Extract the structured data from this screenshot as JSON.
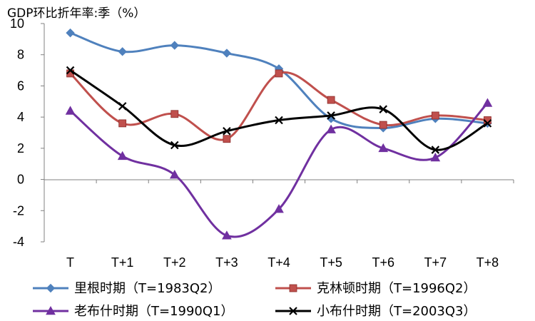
{
  "chart_data": {
    "type": "line",
    "title": "",
    "ylabel": "GDP环比折年率:季（%）",
    "xlabel": "",
    "categories": [
      "T",
      "T+1",
      "T+2",
      "T+3",
      "T+4",
      "T+5",
      "T+6",
      "T+7",
      "T+8"
    ],
    "ylim": [
      -4,
      10
    ],
    "yticks": [
      -4,
      -2,
      0,
      2,
      4,
      6,
      8,
      10
    ],
    "grid": false,
    "smooth": true,
    "legend_position": "bottom",
    "series": [
      {
        "name": "里根时期（T=1983Q2）",
        "color": "#4F81BD",
        "marker": "diamond",
        "values": [
          9.4,
          8.2,
          8.6,
          8.1,
          7.1,
          3.9,
          3.3,
          3.9,
          3.6
        ]
      },
      {
        "name": "克林顿时期（T=1996Q2）",
        "color": "#C0504D",
        "marker": "square",
        "values": [
          6.8,
          3.6,
          4.2,
          2.6,
          6.8,
          5.1,
          3.5,
          4.1,
          3.8
        ]
      },
      {
        "name": "老布什时期（T=1990Q1）",
        "color": "#7030A0",
        "marker": "triangle",
        "values": [
          4.4,
          1.5,
          0.3,
          -3.6,
          -1.9,
          3.2,
          2.0,
          1.4,
          4.9
        ]
      },
      {
        "name": "小布什时期（T=2003Q3）",
        "color": "#000000",
        "marker": "x",
        "values": [
          7.0,
          4.7,
          2.2,
          3.1,
          3.8,
          4.1,
          4.5,
          1.9,
          3.6
        ]
      }
    ]
  }
}
